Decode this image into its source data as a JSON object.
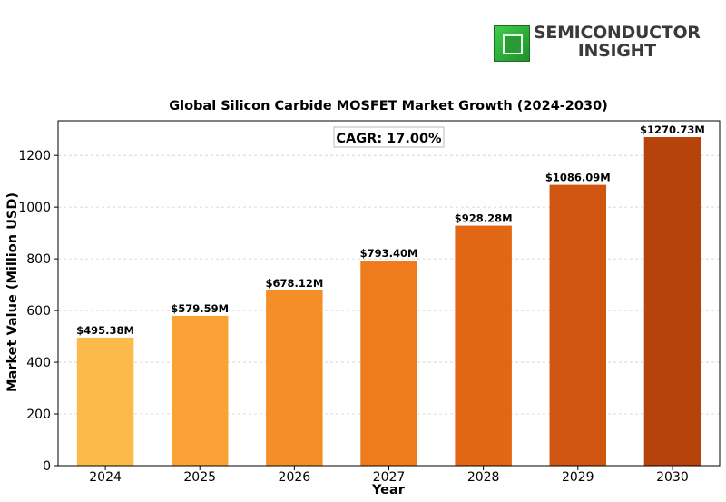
{
  "brand": {
    "line1": "SEMICONDUCTOR",
    "line2": "INSIGHT",
    "logo_icon": "chip-icon"
  },
  "chart_data": {
    "type": "bar",
    "title": "Global Silicon Carbide MOSFET Market Growth (2024-2030)",
    "xlabel": "Year",
    "ylabel": "Market Value (Million USD)",
    "annotation": "CAGR: 17.00%",
    "categories": [
      "2024",
      "2025",
      "2026",
      "2027",
      "2028",
      "2029",
      "2030"
    ],
    "values": [
      495.38,
      579.59,
      678.12,
      793.4,
      928.28,
      1086.09,
      1270.73
    ],
    "data_labels": [
      "$495.38M",
      "$579.59M",
      "$678.12M",
      "$793.40M",
      "$928.28M",
      "$1086.09M",
      "$1270.73M"
    ],
    "colors": [
      "#fdb94b",
      "#faa236",
      "#f68e28",
      "#ef7b1f",
      "#e16715",
      "#d05510",
      "#b6420c"
    ],
    "ylim": [
      0,
      1334
    ],
    "yticks": [
      0,
      200,
      400,
      600,
      800,
      1000,
      1200
    ],
    "grid": true
  }
}
